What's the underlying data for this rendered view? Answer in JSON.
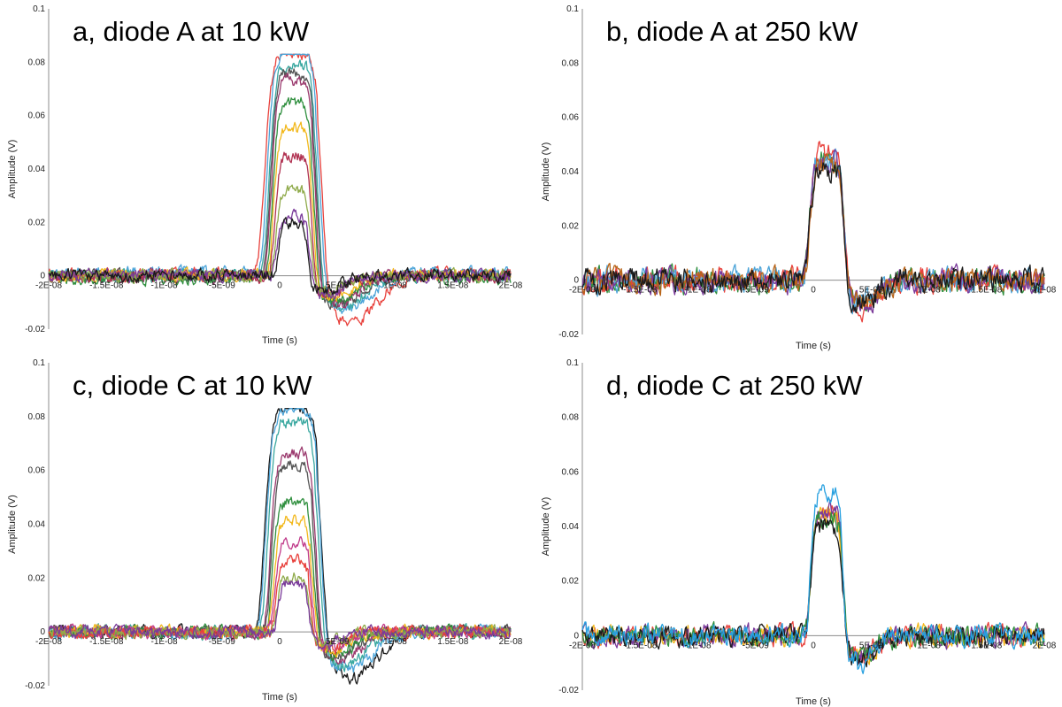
{
  "chart_data": [
    {
      "type": "line",
      "title": "a, diode A at 10 kW",
      "xlabel": "Time (s)",
      "ylabel": "Amplitude (V)",
      "xlim": [
        -2e-08,
        2e-08
      ],
      "ylim": [
        -0.02,
        0.1
      ],
      "y_ticks": [
        "0.1",
        "0.08",
        "0.06",
        "0.04",
        "0.02",
        "0",
        "-0.02"
      ],
      "x_ticks": [
        "-2E-08",
        "-1.5E-08",
        "-1E-08",
        "-5E-09",
        "0",
        "5E-09",
        "1E-08",
        "1.5E-08",
        "2E-08"
      ],
      "grid": false,
      "noise_amplitude": 0.004,
      "series": [
        {
          "color": "#e8413c",
          "peak": 0.083,
          "pulse_width": 2.6e-09,
          "undershoot": -0.018,
          "baseline": 0.0005
        },
        {
          "color": "#4aa3d8",
          "peak": 0.083,
          "pulse_width": 2.4e-09,
          "undershoot": -0.014,
          "baseline": 0.001
        },
        {
          "color": "#3aa8a0",
          "peak": 0.079,
          "pulse_width": 2.2e-09,
          "undershoot": -0.012,
          "baseline": 0.0
        },
        {
          "color": "#555555",
          "peak": 0.076,
          "pulse_width": 2.1e-09,
          "undershoot": -0.011,
          "baseline": 0.0
        },
        {
          "color": "#9b3a6e",
          "peak": 0.073,
          "pulse_width": 2e-09,
          "undershoot": -0.01,
          "baseline": 0.0
        },
        {
          "color": "#2f8f3e",
          "peak": 0.066,
          "pulse_width": 1.9e-09,
          "undershoot": -0.009,
          "baseline": -0.001
        },
        {
          "color": "#f2b81c",
          "peak": 0.055,
          "pulse_width": 1.8e-09,
          "undershoot": -0.008,
          "baseline": 0.0
        },
        {
          "color": "#b03050",
          "peak": 0.045,
          "pulse_width": 1.7e-09,
          "undershoot": -0.007,
          "baseline": 0.0
        },
        {
          "color": "#8faa4a",
          "peak": 0.032,
          "pulse_width": 1.6e-09,
          "undershoot": -0.006,
          "baseline": 0.0
        },
        {
          "color": "#7a3a9a",
          "peak": 0.022,
          "pulse_width": 1.5e-09,
          "undershoot": -0.008,
          "baseline": 0.0
        },
        {
          "color": "#1a1a1a",
          "peak": 0.019,
          "pulse_width": 1.4e-09,
          "undershoot": -0.006,
          "baseline": 0.0
        }
      ]
    },
    {
      "type": "line",
      "title": "b, diode A at 250 kW",
      "xlabel": "Time (s)",
      "ylabel": "Amplitude (V)",
      "xlim": [
        -2e-08,
        2e-08
      ],
      "ylim": [
        -0.02,
        0.1
      ],
      "y_ticks": [
        "0.1",
        "0.08",
        "0.06",
        "0.04",
        "0.02",
        "0",
        "-0.02"
      ],
      "x_ticks": [
        "-2E-08",
        "-1.5E-08",
        "-1E-08",
        "-5E-09",
        "0",
        "5E-09",
        "1E-08",
        "1.5E-08",
        "2E-08"
      ],
      "grid": false,
      "noise_amplitude": 0.0075,
      "series": [
        {
          "color": "#2f8f3e",
          "peak": 0.045,
          "pulse_width": 1.6e-09,
          "undershoot": -0.008,
          "baseline": 0.0
        },
        {
          "color": "#e8413c",
          "peak": 0.047,
          "pulse_width": 1.6e-09,
          "undershoot": -0.01,
          "baseline": 0.0
        },
        {
          "color": "#4aa3d8",
          "peak": 0.044,
          "pulse_width": 1.6e-09,
          "undershoot": -0.009,
          "baseline": 0.0
        },
        {
          "color": "#7a3a9a",
          "peak": 0.043,
          "pulse_width": 1.6e-09,
          "undershoot": -0.008,
          "baseline": 0.0
        },
        {
          "color": "#b8651a",
          "peak": 0.042,
          "pulse_width": 1.6e-09,
          "undershoot": -0.008,
          "baseline": 0.0
        },
        {
          "color": "#1a1a1a",
          "peak": 0.04,
          "pulse_width": 1.6e-09,
          "undershoot": -0.008,
          "baseline": 0.0
        }
      ]
    },
    {
      "type": "line",
      "title": "c, diode C at 10 kW",
      "xlabel": "Time (s)",
      "ylabel": "Amplitude (V)",
      "xlim": [
        -2e-08,
        2e-08
      ],
      "ylim": [
        -0.02,
        0.1
      ],
      "y_ticks": [
        "0.1",
        "0.08",
        "0.06",
        "0.04",
        "0.02",
        "0",
        "-0.02"
      ],
      "x_ticks": [
        "-2E-08",
        "-1.5E-08",
        "-1E-08",
        "-5E-09",
        "0",
        "5E-09",
        "1E-08",
        "1.5E-08",
        "2E-08"
      ],
      "grid": false,
      "noise_amplitude": 0.004,
      "series": [
        {
          "color": "#1a1a1a",
          "peak": 0.083,
          "pulse_width": 2.6e-09,
          "undershoot": -0.017,
          "baseline": 0.0
        },
        {
          "color": "#4aa3d8",
          "peak": 0.083,
          "pulse_width": 2.5e-09,
          "undershoot": -0.014,
          "baseline": 0.0
        },
        {
          "color": "#3aa8a0",
          "peak": 0.078,
          "pulse_width": 2.3e-09,
          "undershoot": -0.012,
          "baseline": 0.0
        },
        {
          "color": "#9b3a6e",
          "peak": 0.066,
          "pulse_width": 2.1e-09,
          "undershoot": -0.01,
          "baseline": 0.0
        },
        {
          "color": "#555555",
          "peak": 0.062,
          "pulse_width": 2e-09,
          "undershoot": -0.009,
          "baseline": 0.0
        },
        {
          "color": "#2f8f3e",
          "peak": 0.048,
          "pulse_width": 1.9e-09,
          "undershoot": -0.008,
          "baseline": 0.0
        },
        {
          "color": "#f2b81c",
          "peak": 0.041,
          "pulse_width": 1.8e-09,
          "undershoot": -0.007,
          "baseline": 0.0
        },
        {
          "color": "#c03b8a",
          "peak": 0.034,
          "pulse_width": 1.7e-09,
          "undershoot": -0.006,
          "baseline": 0.0
        },
        {
          "color": "#e8413c",
          "peak": 0.027,
          "pulse_width": 1.6e-09,
          "undershoot": -0.006,
          "baseline": 0.0
        },
        {
          "color": "#8faa4a",
          "peak": 0.02,
          "pulse_width": 1.5e-09,
          "undershoot": -0.005,
          "baseline": 0.0
        },
        {
          "color": "#7a3a9a",
          "peak": 0.018,
          "pulse_width": 1.4e-09,
          "undershoot": -0.005,
          "baseline": 0.0
        }
      ]
    },
    {
      "type": "line",
      "title": "d, diode C at 250 kW",
      "xlabel": "Time (s)",
      "ylabel": "Amplitude (V)",
      "xlim": [
        -2e-08,
        2e-08
      ],
      "ylim": [
        -0.02,
        0.1
      ],
      "y_ticks": [
        "0.1",
        "0.08",
        "0.06",
        "0.04",
        "0.02",
        "0",
        "-0.02"
      ],
      "x_ticks": [
        "-2E-08",
        "-1.5E-08",
        "-1E-08",
        "-5E-09",
        "0",
        "5E-09",
        "1E-08",
        "1.5E-08",
        "2E-08"
      ],
      "grid": false,
      "noise_amplitude": 0.0065,
      "series": [
        {
          "color": "#e8413c",
          "peak": 0.044,
          "pulse_width": 1.5e-09,
          "undershoot": -0.008,
          "baseline": 0.0
        },
        {
          "color": "#f2b81c",
          "peak": 0.045,
          "pulse_width": 1.5e-09,
          "undershoot": -0.008,
          "baseline": 0.0
        },
        {
          "color": "#7a3a9a",
          "peak": 0.046,
          "pulse_width": 1.5e-09,
          "undershoot": -0.008,
          "baseline": 0.0
        },
        {
          "color": "#2f8f3e",
          "peak": 0.044,
          "pulse_width": 1.5e-09,
          "undershoot": -0.008,
          "baseline": 0.0
        },
        {
          "color": "#1a1a1a",
          "peak": 0.04,
          "pulse_width": 1.5e-09,
          "undershoot": -0.009,
          "baseline": 0.0
        },
        {
          "color": "#27a0e0",
          "peak": 0.052,
          "pulse_width": 1.5e-09,
          "undershoot": -0.01,
          "baseline": 0.0
        }
      ]
    }
  ]
}
